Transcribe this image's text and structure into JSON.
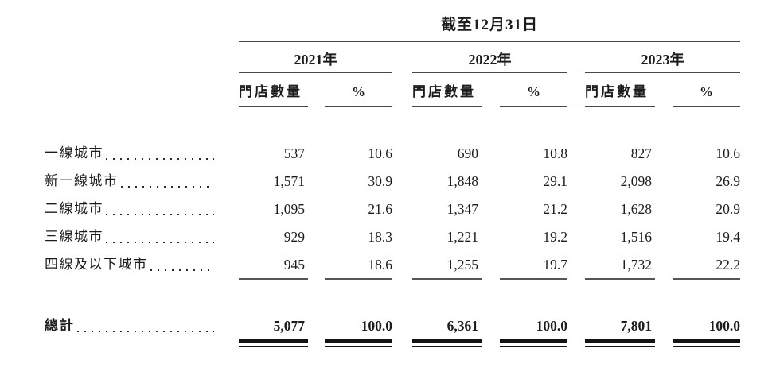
{
  "table": {
    "title": "截至12月31日",
    "year_groups": [
      {
        "label": "2021年"
      },
      {
        "label": "2022年"
      },
      {
        "label": "2023年"
      }
    ],
    "col_headers": {
      "stores": "門店數量",
      "pct": "%"
    },
    "rows": [
      {
        "label": "一線城市",
        "y2021": {
          "stores": "537",
          "pct": "10.6"
        },
        "y2022": {
          "stores": "690",
          "pct": "10.8"
        },
        "y2023": {
          "stores": "827",
          "pct": "10.6"
        }
      },
      {
        "label": "新一線城市",
        "y2021": {
          "stores": "1,571",
          "pct": "30.9"
        },
        "y2022": {
          "stores": "1,848",
          "pct": "29.1"
        },
        "y2023": {
          "stores": "2,098",
          "pct": "26.9"
        }
      },
      {
        "label": "二線城市",
        "y2021": {
          "stores": "1,095",
          "pct": "21.6"
        },
        "y2022": {
          "stores": "1,347",
          "pct": "21.2"
        },
        "y2023": {
          "stores": "1,628",
          "pct": "20.9"
        }
      },
      {
        "label": "三線城市",
        "y2021": {
          "stores": "929",
          "pct": "18.3"
        },
        "y2022": {
          "stores": "1,221",
          "pct": "19.2"
        },
        "y2023": {
          "stores": "1,516",
          "pct": "19.4"
        }
      },
      {
        "label": "四線及以下城市",
        "y2021": {
          "stores": "945",
          "pct": "18.6"
        },
        "y2022": {
          "stores": "1,255",
          "pct": "19.7"
        },
        "y2023": {
          "stores": "1,732",
          "pct": "22.2"
        }
      }
    ],
    "total": {
      "label": "總計",
      "y2021": {
        "stores": "5,077",
        "pct": "100.0"
      },
      "y2022": {
        "stores": "6,361",
        "pct": "100.0"
      },
      "y2023": {
        "stores": "7,801",
        "pct": "100.0"
      }
    }
  },
  "colors": {
    "background": "#ffffff",
    "text": "#1c1c1c",
    "thin_rule": "#474747",
    "total_rule": "#141414"
  }
}
